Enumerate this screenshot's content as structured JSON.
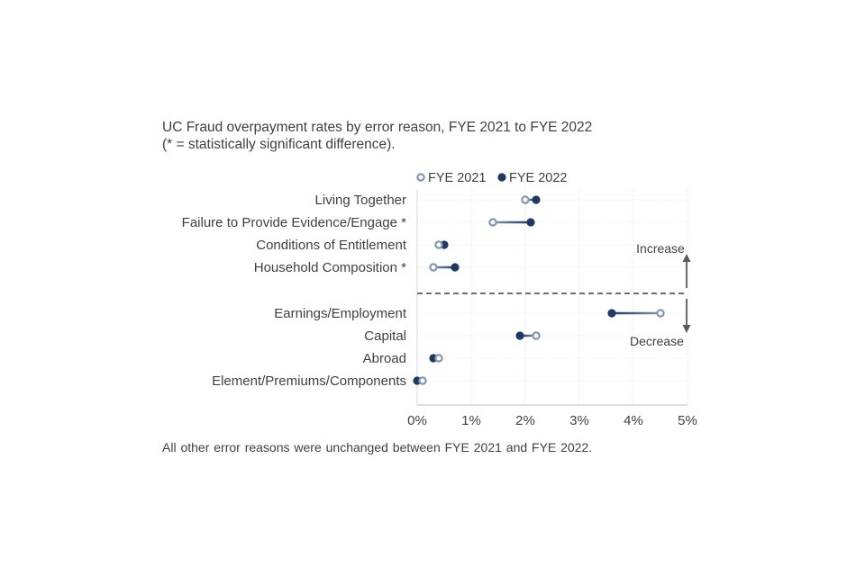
{
  "chart_data": {
    "type": "dumbbell",
    "title": "UC Fraud overpayment rates by error reason, FYE 2021 to FYE 2022",
    "subtitle": "(* = statistically significant difference).",
    "footnote": "All other error reasons were unchanged between FYE 2021 and FYE 2022.",
    "legend": {
      "placement": "top",
      "entries": [
        "FYE 2021",
        "FYE 2022"
      ]
    },
    "colors": {
      "fye2021": "#8497B0",
      "fye2022": "#1F3864",
      "text": "#404040",
      "arrow": "#595959"
    },
    "xlim": [
      0,
      5
    ],
    "xticks": [
      "0%",
      "1%",
      "2%",
      "3%",
      "4%",
      "5%"
    ],
    "groups": [
      {
        "label": "Increase",
        "items": [
          {
            "category": "Living Together",
            "fye2021": 2.0,
            "fye2022": 2.2
          },
          {
            "category": "Failure to Provide Evidence/Engage *",
            "fye2021": 1.4,
            "fye2022": 2.1
          },
          {
            "category": "Conditions of Entitlement",
            "fye2021": 0.4,
            "fye2022": 0.5
          },
          {
            "category": "Household Composition *",
            "fye2021": 0.3,
            "fye2022": 0.7
          }
        ]
      },
      {
        "label": "Decrease",
        "items": [
          {
            "category": "Earnings/Employment",
            "fye2021": 4.5,
            "fye2022": 3.6
          },
          {
            "category": "Capital",
            "fye2021": 2.2,
            "fye2022": 1.9
          },
          {
            "category": "Abroad",
            "fye2021": 0.4,
            "fye2022": 0.3
          },
          {
            "category": "Element/Premiums/Components",
            "fye2021": 0.1,
            "fye2022": 0.0
          }
        ]
      }
    ]
  }
}
